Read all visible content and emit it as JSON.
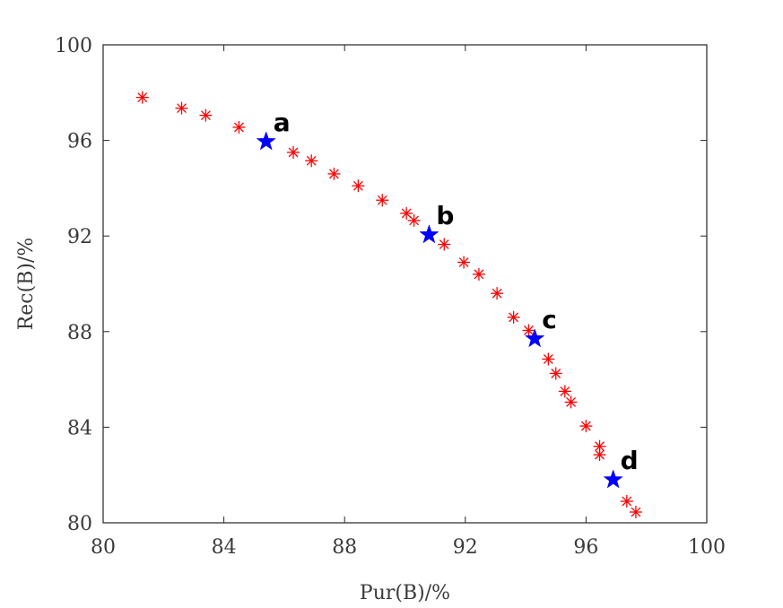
{
  "chart_data": {
    "type": "scatter",
    "title": "",
    "xlabel": "Pur(B)/%",
    "ylabel": "Rec(B)/%",
    "xlim": [
      80,
      100
    ],
    "ylim": [
      80,
      100
    ],
    "xticks": [
      "80",
      "84",
      "88",
      "92",
      "96",
      "100"
    ],
    "yticks": [
      "80",
      "84",
      "88",
      "92",
      "96",
      "100"
    ],
    "xtick_values": [
      80,
      84,
      88,
      92,
      96,
      100
    ],
    "ytick_values": [
      80,
      84,
      88,
      92,
      96,
      100
    ],
    "grid": false,
    "series": [
      {
        "marker": "asterisk",
        "color": "#ff0000",
        "points": [
          [
            81.3,
            97.8
          ],
          [
            82.6,
            97.35
          ],
          [
            83.4,
            97.05
          ],
          [
            84.5,
            96.55
          ],
          [
            86.3,
            95.5
          ],
          [
            86.9,
            95.15
          ],
          [
            87.65,
            94.6
          ],
          [
            88.45,
            94.1
          ],
          [
            89.25,
            93.5
          ],
          [
            90.05,
            92.95
          ],
          [
            90.3,
            92.65
          ],
          [
            91.3,
            91.65
          ],
          [
            91.95,
            90.9
          ],
          [
            92.45,
            90.4
          ],
          [
            93.05,
            89.6
          ],
          [
            93.6,
            88.6
          ],
          [
            94.1,
            88.05
          ],
          [
            94.75,
            86.85
          ],
          [
            95.0,
            86.25
          ],
          [
            95.3,
            85.5
          ],
          [
            95.5,
            85.05
          ],
          [
            96.0,
            84.05
          ],
          [
            96.45,
            83.2
          ],
          [
            96.45,
            82.85
          ],
          [
            97.35,
            80.9
          ],
          [
            97.65,
            80.45
          ]
        ]
      },
      {
        "marker": "star",
        "color": "#0000ff",
        "points": [
          [
            85.4,
            95.95
          ],
          [
            90.8,
            92.05
          ],
          [
            94.3,
            87.7
          ],
          [
            96.9,
            81.8
          ]
        ],
        "labels": [
          "a",
          "b",
          "c",
          "d"
        ]
      }
    ]
  }
}
